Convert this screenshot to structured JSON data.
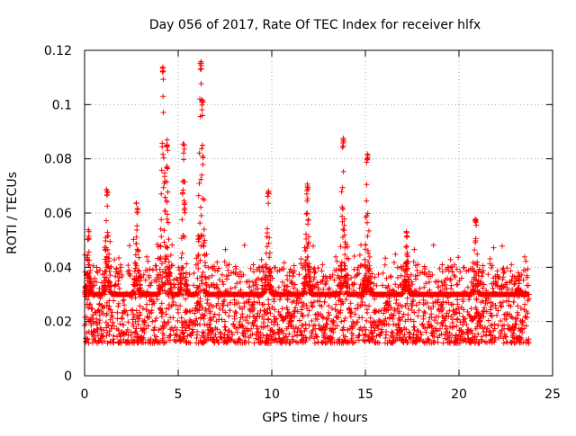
{
  "chart_data": {
    "type": "scatter",
    "title": "Day 056 of 2017, Rate Of TEC Index for receiver hlfx",
    "xlabel": "GPS time / hours",
    "ylabel": "ROTI / TECUs",
    "xlim": [
      0,
      25
    ],
    "ylim": [
      0,
      0.12
    ],
    "x_ticks": [
      "0",
      "5",
      "10",
      "15",
      "20",
      "25"
    ],
    "y_ticks": [
      "0",
      "0.02",
      "0.04",
      "0.06",
      "0.08",
      "0.1",
      "0.12"
    ],
    "x_tick_values": [
      0,
      5,
      10,
      15,
      20,
      25
    ],
    "y_tick_values": [
      0,
      0.02,
      0.04,
      0.06,
      0.08,
      0.1,
      0.12
    ],
    "grid": true,
    "marker": "+",
    "series": [
      {
        "name": "ROTI",
        "color": "#ff0000",
        "x_range": [
          0,
          23.75
        ],
        "baseline_band": [
          0.006,
          0.035
        ],
        "peaks": [
          {
            "x": 0.2,
            "y": 0.054
          },
          {
            "x": 1.2,
            "y": 0.069
          },
          {
            "x": 2.8,
            "y": 0.064
          },
          {
            "x": 4.2,
            "y": 0.115
          },
          {
            "x": 4.4,
            "y": 0.087
          },
          {
            "x": 5.3,
            "y": 0.086
          },
          {
            "x": 6.2,
            "y": 0.117
          },
          {
            "x": 6.3,
            "y": 0.102
          },
          {
            "x": 9.8,
            "y": 0.07
          },
          {
            "x": 11.9,
            "y": 0.071
          },
          {
            "x": 13.8,
            "y": 0.088
          },
          {
            "x": 15.1,
            "y": 0.082
          },
          {
            "x": 17.2,
            "y": 0.054
          },
          {
            "x": 20.9,
            "y": 0.059
          },
          {
            "x": 23.2,
            "y": 0.038
          }
        ]
      }
    ]
  }
}
